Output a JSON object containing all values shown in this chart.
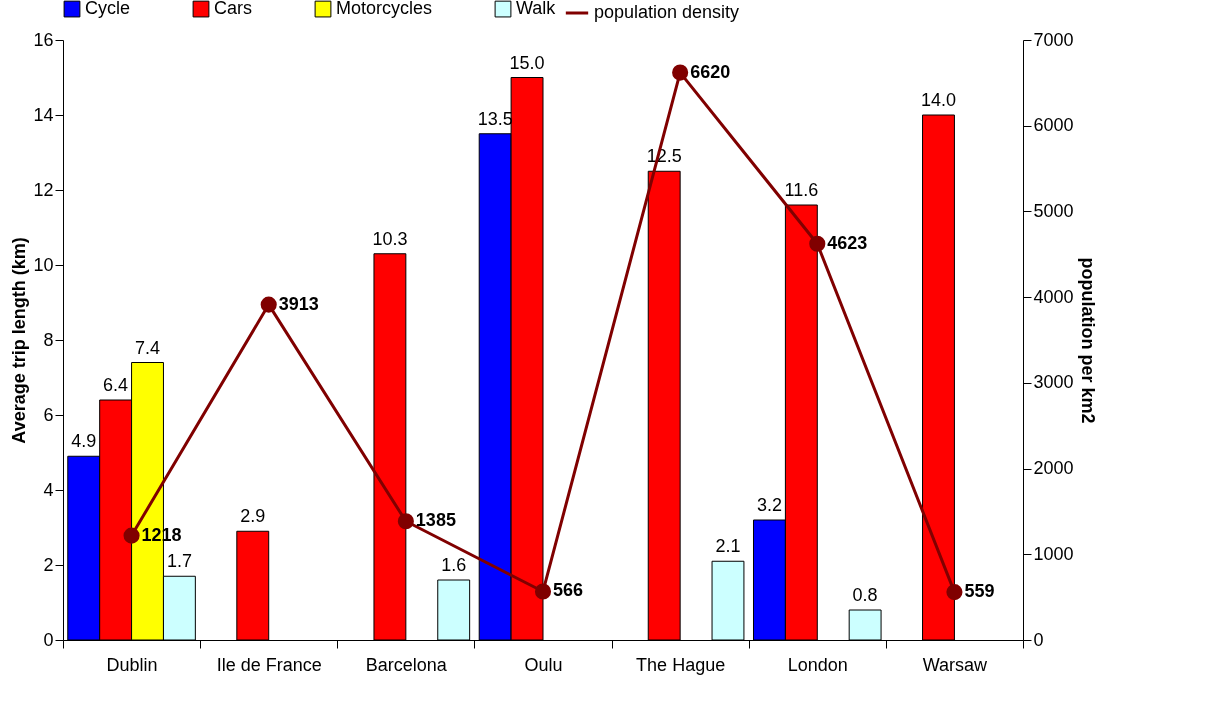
{
  "chart_data": {
    "type": "bar",
    "ylabel": "Average trip length (km)",
    "y2label": "population per km2",
    "categories": [
      "Dublin",
      "Ile de France",
      "Barcelona",
      "Oulu",
      "The Hague",
      "London",
      "Warsaw"
    ],
    "series": [
      {
        "name": "Cycle",
        "color": "#0000ff",
        "values": [
          4.9,
          null,
          null,
          13.5,
          null,
          3.2,
          null
        ],
        "value_labels": [
          "4.9",
          null,
          null,
          "13.5",
          null,
          "3.2",
          null
        ]
      },
      {
        "name": "Cars",
        "color": "#ff0000",
        "values": [
          6.4,
          2.9,
          10.3,
          15.0,
          12.5,
          11.6,
          14.0
        ],
        "value_labels": [
          "6.4",
          "2.9",
          "10.3",
          "15.0",
          "12.5",
          "11.6",
          "14.0"
        ]
      },
      {
        "name": "Motorcycles",
        "color": "#ffff00",
        "values": [
          7.4,
          null,
          null,
          null,
          null,
          null,
          null
        ],
        "value_labels": [
          "7.4",
          null,
          null,
          null,
          null,
          null,
          null
        ]
      },
      {
        "name": "Walk",
        "color": "#ccffff",
        "values": [
          1.7,
          null,
          1.6,
          null,
          2.1,
          0.8,
          null
        ],
        "value_labels": [
          "1.7",
          null,
          "1.6",
          null,
          "2.1",
          "0.8",
          null
        ]
      },
      {
        "name": "population density",
        "type": "line",
        "axis": "y2",
        "color": "#800000",
        "marker": "circle",
        "line_style": "solid",
        "values": [
          1218,
          3913,
          1385,
          566,
          6620,
          4623,
          559
        ],
        "value_labels": [
          "1218",
          "3913",
          "1385",
          "566",
          "6620",
          "4623",
          "559"
        ]
      }
    ],
    "ylim": [
      0,
      16
    ],
    "yticks": [
      0,
      2,
      4,
      6,
      8,
      10,
      12,
      14,
      16
    ],
    "y2lim": [
      0,
      7000
    ],
    "y2ticks": [
      0,
      1000,
      2000,
      3000,
      4000,
      5000,
      6000,
      7000
    ],
    "grid": false,
    "legend": "top"
  }
}
